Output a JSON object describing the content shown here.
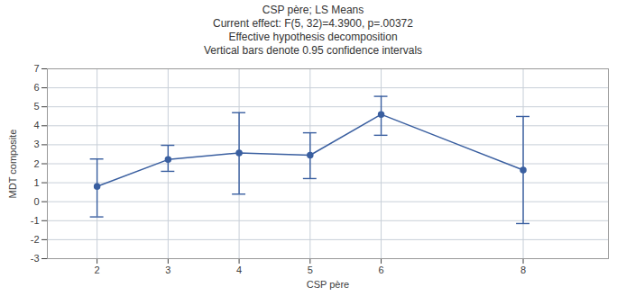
{
  "chart_data": {
    "type": "line",
    "title": "CSP père; LS Means\nCurrent effect: F(5, 32)=4.3900, p=.00372\nEffective hypothesis decomposition\nVertical bars denote 0.95 confidence intervals",
    "x": [
      2,
      3,
      4,
      5,
      6,
      8
    ],
    "values": [
      0.8,
      2.22,
      2.57,
      2.45,
      4.6,
      1.67
    ],
    "error_low": [
      1.6,
      0.62,
      2.17,
      1.23,
      1.1,
      2.82
    ],
    "error_high": [
      1.45,
      0.75,
      2.12,
      1.18,
      0.95,
      2.82
    ],
    "color": "#3a5fa0",
    "marker": "o",
    "line_style": "solid",
    "xlabel": "CSP père",
    "ylabel": "MDT composite",
    "xlim": [
      1.3,
      9.2
    ],
    "ylim": [
      -3,
      7
    ],
    "xticks": [
      2,
      3,
      4,
      5,
      6,
      8
    ],
    "yticks": [
      -3,
      -2,
      -1,
      0,
      1,
      2,
      3,
      4,
      5,
      6,
      7
    ],
    "grid": true
  }
}
